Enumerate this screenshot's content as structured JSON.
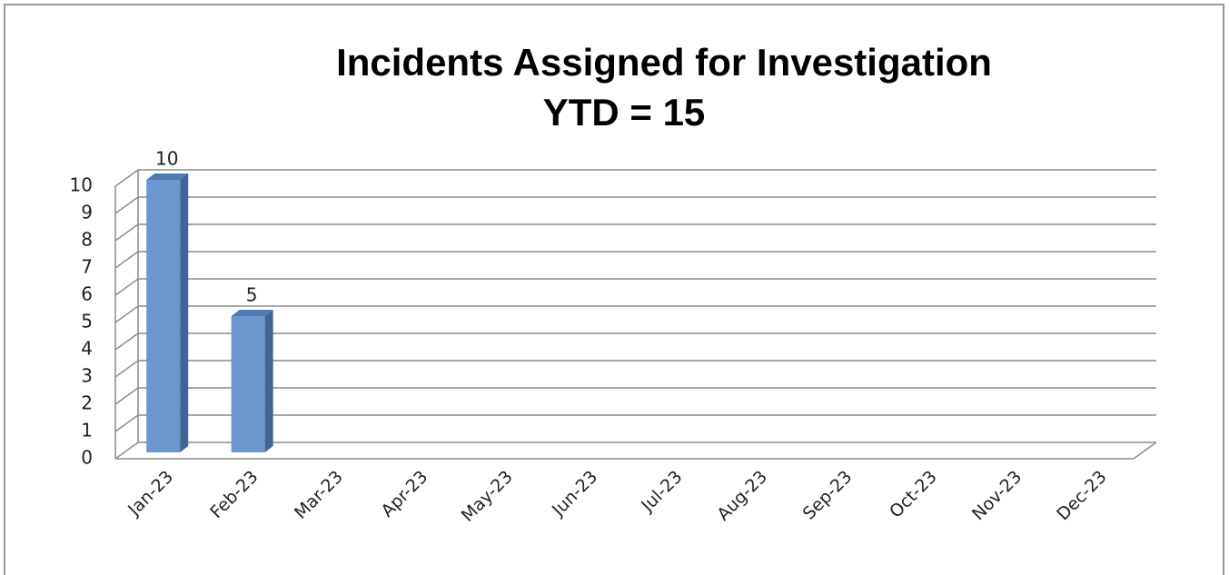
{
  "chart_data": {
    "type": "bar3d",
    "title": "Incidents Assigned for Investigation",
    "subtitle": "YTD = 15",
    "categories": [
      "Jan-23",
      "Feb-23",
      "Mar-23",
      "Apr-23",
      "May-23",
      "Jun-23",
      "Jul-23",
      "Aug-23",
      "Sep-23",
      "Oct-23",
      "Nov-23",
      "Dec-23"
    ],
    "values": [
      10,
      5,
      null,
      null,
      null,
      null,
      null,
      null,
      null,
      null,
      null,
      null
    ],
    "color": "#6a97cf",
    "ylim": [
      0,
      10
    ],
    "yticks": [
      0,
      1,
      2,
      3,
      4,
      5,
      6,
      7,
      8,
      9,
      10
    ],
    "grid": true
  }
}
